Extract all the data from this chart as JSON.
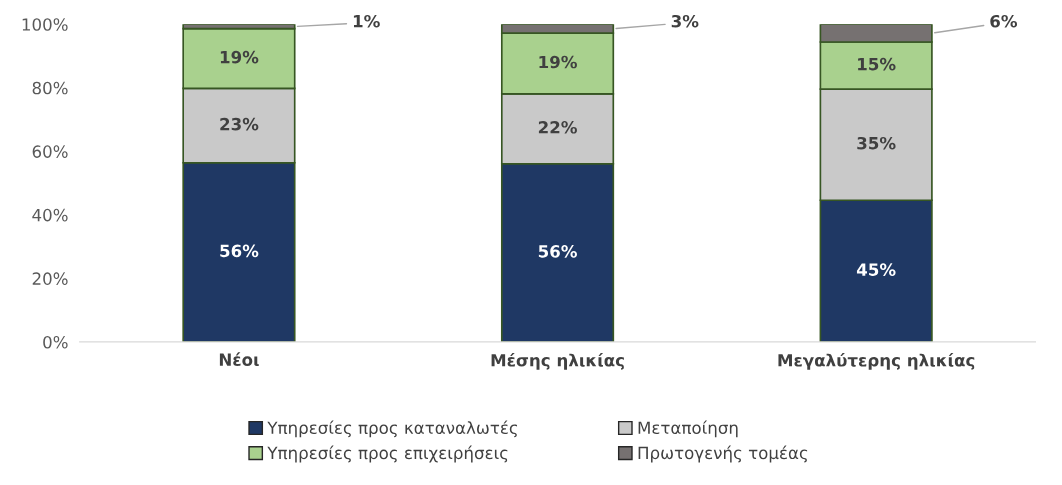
{
  "chart_data": {
    "type": "bar",
    "stacked": true,
    "categories": [
      "Νέοι",
      "Μέσης ηλικίας",
      "Μεγαλύτερης ηλικίας"
    ],
    "series": [
      {
        "name": "Υπηρεσίες προς καταναλωτές",
        "color": "#1f3864",
        "values": [
          56.4,
          56.1,
          44.6
        ],
        "value_labels": [
          "56%",
          "56%",
          "45%"
        ]
      },
      {
        "name": "Μεταποίηση",
        "color": "#c9c9c9",
        "values": [
          23.4,
          22.0,
          35.0
        ],
        "value_labels": [
          "23%",
          "22%",
          "35%"
        ]
      },
      {
        "name": "Υπηρεσίες προς επιχειρήσεις",
        "color": "#a9d18e",
        "values": [
          18.8,
          19.1,
          14.8
        ],
        "value_labels": [
          "19%",
          "19%",
          "15%"
        ]
      },
      {
        "name": "Πρωτογενής τομέας",
        "color": "#767171",
        "values": [
          1.4,
          2.8,
          5.6
        ],
        "value_labels": [
          "1%",
          "3%",
          "6%"
        ]
      }
    ],
    "ylim": [
      0,
      100
    ],
    "yticks": [
      {
        "value": 0,
        "label": "0%"
      },
      {
        "value": 20,
        "label": "20%"
      },
      {
        "value": 40,
        "label": "40%"
      },
      {
        "value": 60,
        "label": "60%"
      },
      {
        "value": 80,
        "label": "80%"
      },
      {
        "value": 100,
        "label": "100%"
      }
    ],
    "grid": false,
    "legend": "bottom"
  }
}
